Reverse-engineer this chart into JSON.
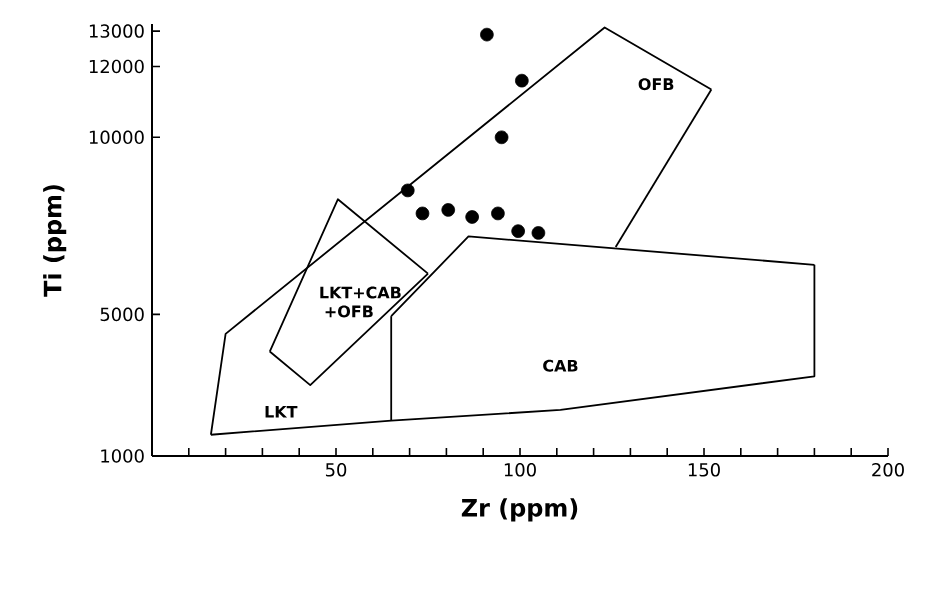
{
  "chart_data": {
    "type": "scatter",
    "xlabel": "Zr (ppm)",
    "ylabel": "Ti (ppm)",
    "xlim": [
      0,
      200
    ],
    "ylim": [
      1000,
      13200
    ],
    "xticks": [
      {
        "value": 10,
        "label": null
      },
      {
        "value": 20,
        "label": null
      },
      {
        "value": 30,
        "label": null
      },
      {
        "value": 40,
        "label": null
      },
      50,
      {
        "value": 60,
        "label": null
      },
      {
        "value": 70,
        "label": null
      },
      {
        "value": 80,
        "label": null
      },
      {
        "value": 90,
        "label": null
      },
      100,
      {
        "value": 110,
        "label": null
      },
      {
        "value": 120,
        "label": null
      },
      {
        "value": 130,
        "label": null
      },
      {
        "value": 140,
        "label": null
      },
      150,
      {
        "value": 160,
        "label": null
      },
      {
        "value": 170,
        "label": null
      },
      {
        "value": 180,
        "label": null
      },
      {
        "value": 190,
        "label": null
      },
      200
    ],
    "yticks": [
      1000,
      5000,
      10000,
      12000,
      13000
    ],
    "series": [
      {
        "marker": "circle",
        "color": "#000000",
        "x": [
          91,
          100.5,
          95,
          69.5,
          73.5,
          80.5,
          87,
          94,
          99.5,
          105
        ],
        "values": [
          12900,
          11600,
          10000,
          8500,
          7850,
          7950,
          7750,
          7850,
          7350,
          7300
        ]
      },
      {
        "type": "line",
        "marker": "none",
        "color": "#000000",
        "x": [
          16,
          20,
          123,
          152
        ],
        "values": [
          1600,
          4450,
          13100,
          11350
        ]
      },
      {
        "type": "line",
        "marker": "none",
        "color": "#000000",
        "x": [
          126,
          152
        ],
        "values": [
          6900,
          11350
        ]
      },
      {
        "type": "line",
        "marker": "none",
        "color": "#000000",
        "x": [
          16,
          65,
          111,
          180,
          180
        ],
        "values": [
          1600,
          2000,
          2300,
          3250,
          6400
        ]
      },
      {
        "type": "line",
        "marker": "none",
        "color": "#000000",
        "x": [
          65,
          86,
          180
        ],
        "values": [
          4950,
          7200,
          6400
        ]
      },
      {
        "type": "line",
        "marker": "none",
        "color": "#000000",
        "x": [
          65,
          65
        ],
        "values": [
          2000,
          4950
        ]
      },
      {
        "type": "line",
        "marker": "none",
        "color": "#000000",
        "x": [
          32,
          50.5,
          75
        ],
        "values": [
          3950,
          8250,
          6150
        ]
      },
      {
        "type": "line",
        "marker": "none",
        "color": "#000000",
        "x": [
          32,
          43,
          75
        ],
        "values": [
          3950,
          3000,
          6150
        ]
      }
    ],
    "annotations": [
      "OFB",
      "LKT+CAB +OFB",
      "CAB",
      "LKT"
    ]
  }
}
